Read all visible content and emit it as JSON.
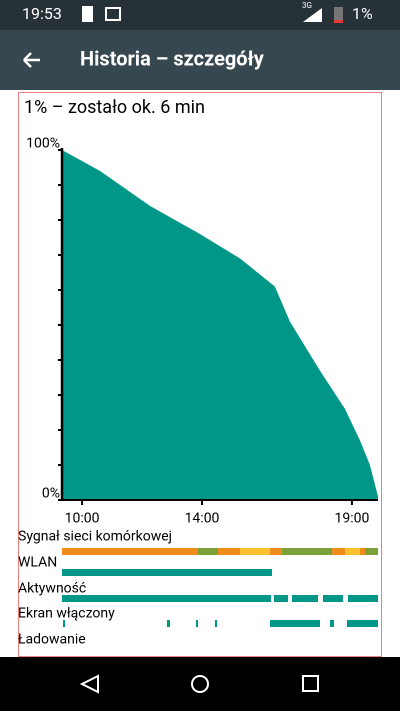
{
  "status_bar": {
    "time": "19:53",
    "network": "3G",
    "battery": "1%"
  },
  "app_bar": {
    "title": "Historia – szczegóły"
  },
  "summary": "1% – zostało ok.  6 min",
  "chart_data": {
    "type": "area",
    "color": "#009688",
    "x": [
      9.33,
      10.6,
      12.27,
      13.93,
      15.27,
      16.43,
      16.93,
      17.93,
      18.77,
      19.27,
      19.6,
      19.87
    ],
    "values": [
      100,
      94,
      84,
      76,
      69,
      61,
      51,
      37,
      26,
      17,
      10,
      1
    ],
    "xlim": [
      9.33,
      19.87
    ],
    "ylim": [
      0,
      100
    ],
    "xticks": [
      {
        "value": 10,
        "label": "10:00"
      },
      {
        "value": 14,
        "label": "14:00"
      },
      {
        "value": 19,
        "label": "19:00"
      }
    ],
    "yticks": [
      {
        "value": 0,
        "label": "0%"
      },
      {
        "value": 100,
        "label": "100%"
      }
    ]
  },
  "tracks": [
    "Sygnał sieci komórkowej",
    "WLAN",
    "Aktywność",
    "Ekran włączony",
    "Ładowanie"
  ]
}
